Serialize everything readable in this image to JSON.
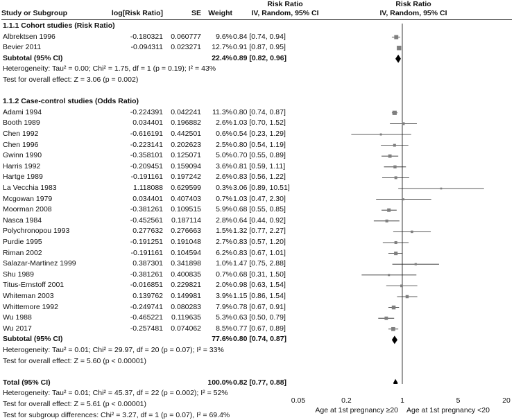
{
  "header": {
    "rr_title": "Risk Ratio",
    "rr_sub": "IV, Random, 95% CI",
    "col_study": "Study or Subgroup",
    "col_logrr": "log[Risk Ratio]",
    "col_se": "SE",
    "col_weight": "Weight",
    "col_ci": "IV, Random, 95% CI",
    "plot_title": "Risk Ratio",
    "plot_sub": "IV, Random, 95% CI"
  },
  "groups": [
    {
      "title": "1.1.1 Cohort studies (Risk Ratio)",
      "studies": [
        {
          "name": "Albrektsen 1996",
          "logrr": "-0.180321",
          "se": "0.060777",
          "weight": "9.6%",
          "ci_text": "0.84 [0.74, 0.94]",
          "rr": 0.84,
          "lo": 0.74,
          "hi": 0.94,
          "w": 9.6
        },
        {
          "name": "Bevier 2011",
          "logrr": "-0.094311",
          "se": "0.023271",
          "weight": "12.7%",
          "ci_text": "0.91 [0.87, 0.95]",
          "rr": 0.91,
          "lo": 0.87,
          "hi": 0.95,
          "w": 12.7
        }
      ],
      "subtotal": {
        "label": "Subtotal (95% CI)",
        "weight": "22.4%",
        "ci_text": "0.89 [0.82, 0.96]",
        "rr": 0.89,
        "lo": 0.82,
        "hi": 0.96
      },
      "heterogeneity": "Heterogeneity: Tau² = 0.00; Chi² = 1.75, df = 1 (p = 0.19); I² = 43%",
      "overall": "Test for overall effect: Z = 3.06 (p = 0.002)"
    },
    {
      "title": "1.1.2 Case-control studies (Odds Ratio)",
      "studies": [
        {
          "name": "Adami 1994",
          "logrr": "-0.224391",
          "se": "0.042241",
          "weight": "11.3%",
          "ci_text": "0.80 [0.74, 0.87]",
          "rr": 0.8,
          "lo": 0.74,
          "hi": 0.87,
          "w": 11.3
        },
        {
          "name": "Booth 1989",
          "logrr": "0.034401",
          "se": "0.196882",
          "weight": "2.6%",
          "ci_text": "1.03 [0.70, 1.52]",
          "rr": 1.03,
          "lo": 0.7,
          "hi": 1.52,
          "w": 2.6
        },
        {
          "name": "Chen 1992",
          "logrr": "-0.616191",
          "se": "0.442501",
          "weight": "0.6%",
          "ci_text": "0.54 [0.23, 1.29]",
          "rr": 0.54,
          "lo": 0.23,
          "hi": 1.29,
          "w": 0.6
        },
        {
          "name": "Chen 1996",
          "logrr": "-0.223141",
          "se": "0.202623",
          "weight": "2.5%",
          "ci_text": "0.80 [0.54, 1.19]",
          "rr": 0.8,
          "lo": 0.54,
          "hi": 1.19,
          "w": 2.5
        },
        {
          "name": "Gwinn 1990",
          "logrr": "-0.358101",
          "se": "0.125071",
          "weight": "5.0%",
          "ci_text": "0.70 [0.55, 0.89]",
          "rr": 0.7,
          "lo": 0.55,
          "hi": 0.89,
          "w": 5.0
        },
        {
          "name": "Harris 1992",
          "logrr": "-0.209451",
          "se": "0.159094",
          "weight": "3.6%",
          "ci_text": "0.81 [0.59, 1.11]",
          "rr": 0.81,
          "lo": 0.59,
          "hi": 1.11,
          "w": 3.6
        },
        {
          "name": "Hartge 1989",
          "logrr": "-0.191161",
          "se": "0.197242",
          "weight": "2.6%",
          "ci_text": "0.83 [0.56, 1.22]",
          "rr": 0.83,
          "lo": 0.56,
          "hi": 1.22,
          "w": 2.6
        },
        {
          "name": "La Vecchia 1983",
          "logrr": "1.118088",
          "se": "0.629599",
          "weight": "0.3%",
          "ci_text": "3.06 [0.89, 10.51]",
          "rr": 3.06,
          "lo": 0.89,
          "hi": 10.51,
          "w": 0.3
        },
        {
          "name": "Mcgowan 1979",
          "logrr": "0.034401",
          "se": "0.407403",
          "weight": "0.7%",
          "ci_text": "1.03 [0.47, 2.30]",
          "rr": 1.03,
          "lo": 0.47,
          "hi": 2.3,
          "w": 0.7
        },
        {
          "name": "Moorman 2008",
          "logrr": "-0.381261",
          "se": "0.109515",
          "weight": "5.9%",
          "ci_text": "0.68 [0.55, 0.85]",
          "rr": 0.68,
          "lo": 0.55,
          "hi": 0.85,
          "w": 5.9
        },
        {
          "name": "Nasca 1984",
          "logrr": "-0.452561",
          "se": "0.187114",
          "weight": "2.8%",
          "ci_text": "0.64 [0.44, 0.92]",
          "rr": 0.64,
          "lo": 0.44,
          "hi": 0.92,
          "w": 2.8
        },
        {
          "name": "Polychronopou 1993",
          "logrr": "0.277632",
          "se": "0.276663",
          "weight": "1.5%",
          "ci_text": "1.32 [0.77, 2.27]",
          "rr": 1.32,
          "lo": 0.77,
          "hi": 2.27,
          "w": 1.5
        },
        {
          "name": "Purdie 1995",
          "logrr": "-0.191251",
          "se": "0.191048",
          "weight": "2.7%",
          "ci_text": "0.83 [0.57, 1.20]",
          "rr": 0.83,
          "lo": 0.57,
          "hi": 1.2,
          "w": 2.7
        },
        {
          "name": "Riman 2002",
          "logrr": "-0.191161",
          "se": "0.104594",
          "weight": "6.2%",
          "ci_text": "0.83 [0.67, 1.01]",
          "rr": 0.83,
          "lo": 0.67,
          "hi": 1.01,
          "w": 6.2
        },
        {
          "name": "Salazar-Martinez 1999",
          "logrr": "0.387301",
          "se": "0.341898",
          "weight": "1.0%",
          "ci_text": "1.47 [0.75, 2.88]",
          "rr": 1.47,
          "lo": 0.75,
          "hi": 2.88,
          "w": 1.0
        },
        {
          "name": "Shu 1989",
          "logrr": "-0.381261",
          "se": "0.400835",
          "weight": "0.7%",
          "ci_text": "0.68 [0.31, 1.50]",
          "rr": 0.68,
          "lo": 0.31,
          "hi": 1.5,
          "w": 0.7
        },
        {
          "name": "Titus-Ernstoff 2001",
          "logrr": "-0.016851",
          "se": "0.229821",
          "weight": "2.0%",
          "ci_text": "0.98 [0.63, 1.54]",
          "rr": 0.98,
          "lo": 0.63,
          "hi": 1.54,
          "w": 2.0
        },
        {
          "name": "Whiteman 2003",
          "logrr": "0.139762",
          "se": "0.149981",
          "weight": "3.9%",
          "ci_text": "1.15 [0.86, 1.54]",
          "rr": 1.15,
          "lo": 0.86,
          "hi": 1.54,
          "w": 3.9
        },
        {
          "name": "Whittemore 1992",
          "logrr": "-0.249741",
          "se": "0.080283",
          "weight": "7.9%",
          "ci_text": "0.78 [0.67, 0.91]",
          "rr": 0.78,
          "lo": 0.67,
          "hi": 0.91,
          "w": 7.9
        },
        {
          "name": "Wu 1988",
          "logrr": "-0.465221",
          "se": "0.119635",
          "weight": "5.3%",
          "ci_text": "0.63 [0.50, 0.79]",
          "rr": 0.63,
          "lo": 0.5,
          "hi": 0.79,
          "w": 5.3
        },
        {
          "name": "Wu 2017",
          "logrr": "-0.257481",
          "se": "0.074062",
          "weight": "8.5%",
          "ci_text": "0.77 [0.67, 0.89]",
          "rr": 0.77,
          "lo": 0.67,
          "hi": 0.89,
          "w": 8.5
        }
      ],
      "subtotal": {
        "label": "Subtotal (95% CI)",
        "weight": "77.6%",
        "ci_text": "0.80 [0.74, 0.87]",
        "rr": 0.8,
        "lo": 0.74,
        "hi": 0.87
      },
      "heterogeneity": "Heterogeneity: Tau² = 0.01; Chi² = 29.97, df = 20 (p = 0.07); I² = 33%",
      "overall": "Test for overall effect: Z = 5.60 (p < 0.00001)"
    }
  ],
  "total": {
    "label": "Total (95% CI)",
    "weight": "100.0%",
    "ci_text": "0.82 [0.77, 0.88]",
    "rr": 0.82,
    "lo": 0.77,
    "hi": 0.88
  },
  "footer": {
    "heterogeneity": "Heterogeneity: Tau² = 0.01; Chi² = 45.37, df = 22 (p = 0.002); I² = 52%",
    "overall": "Test for overall effect: Z = 5.61 (p < 0.00001)",
    "subgroup": "Test for subgroup differences: Chi² = 3.27, df = 1 (p = 0.07), I² = 69.4%"
  },
  "chart_data": {
    "type": "forest",
    "scale": "log",
    "xlim": [
      0.05,
      20
    ],
    "ticks": [
      {
        "value": 0.05,
        "label": "0.05"
      },
      {
        "value": 0.2,
        "label": "0.2"
      },
      {
        "value": 1,
        "label": "1"
      },
      {
        "value": 5,
        "label": "5"
      },
      {
        "value": 20,
        "label": "20"
      }
    ],
    "xlabel_left": "Age at 1st pregnancy ≥20",
    "xlabel_right": "Age at 1st pregnancy <20"
  }
}
